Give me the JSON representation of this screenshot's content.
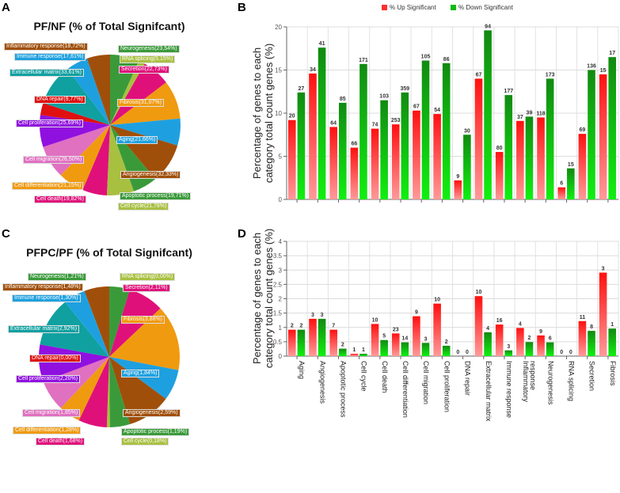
{
  "panels": {
    "a": "A",
    "b": "B",
    "c": "C",
    "d": "D"
  },
  "colors": {
    "up": "#ff1a1a",
    "down": "#119911"
  },
  "chart_data": [
    {
      "type": "pie",
      "title": "PF/NF (% of Total Signifcant)",
      "slices": [
        {
          "name": "Neurogenesis",
          "value": 23.54,
          "label": "Neurogenesis(23,54%)",
          "color": "#3a9a3a"
        },
        {
          "name": "RNA splicing",
          "value": 5.15,
          "label": "RNA splicing(5,15%)",
          "color": "#a8c040"
        },
        {
          "name": "Secretion",
          "value": 22.73,
          "label": "Secretion(22,73%)",
          "color": "#e0107a"
        },
        {
          "name": "Fibrosis",
          "value": 31.07,
          "label": "Fibrosis(31,07%)",
          "color": "#f09a10"
        },
        {
          "name": "Aging",
          "value": 21.66,
          "label": "Aging(21,66%)",
          "color": "#1ea0e0"
        },
        {
          "name": "Angiogenesis",
          "value": 32.33,
          "label": "Angiogenesis(32,33%)",
          "color": "#a04f0a"
        },
        {
          "name": "Apoptotic process",
          "value": 19.71,
          "label": "Apoptotic process(19,71%)",
          "color": "#3a9a3a"
        },
        {
          "name": "Cell cycle",
          "value": 21.78,
          "label": "Cell cycle(21,78%)",
          "color": "#a8c040"
        },
        {
          "name": "Cell death",
          "value": 19.82,
          "label": "Cell death(19,82%)",
          "color": "#e0107a"
        },
        {
          "name": "Cell differentiation",
          "value": 21.15,
          "label": "Cell differentiation(21,15%)",
          "color": "#f09a10"
        },
        {
          "name": "Cell migration",
          "value": 26.5,
          "label": "Cell migration(26,50%)",
          "color": "#e070c0"
        },
        {
          "name": "Cell proliferation",
          "value": 25.69,
          "label": "Cell proliferation(25,69%)",
          "color": "#9010e0"
        },
        {
          "name": "DNA repair",
          "value": 9.77,
          "label": "DNA repair(9,77%)",
          "color": "#e01010"
        },
        {
          "name": "Extracellular matrix",
          "value": 33.61,
          "label": "Extracellular matrix(33,61%)",
          "color": "#10a0a0"
        },
        {
          "name": "Immune response",
          "value": 17.61,
          "label": "Immune response(17,61%)",
          "color": "#1ea0e0"
        },
        {
          "name": "Inflammatory response",
          "value": 18.72,
          "label": "Inflammatory response(18,72%)",
          "color": "#a04f0a"
        }
      ]
    },
    {
      "type": "bar",
      "title": "",
      "legend": [
        "% Up Significant",
        "% Down Significant"
      ],
      "legend_position": "top",
      "ylabel": [
        "Percentage of genes to each",
        "category total count genes (%)"
      ],
      "ylim": [
        0,
        20
      ],
      "yticks": [
        "0",
        "5",
        "10",
        "15",
        "20"
      ],
      "grid": true,
      "categories": [
        "Aging",
        "Angiogenesis",
        "Apoptotic process",
        "Cell cycle",
        "Cell death",
        "Cell differentiation",
        "Cell migration",
        "Cell proliferation",
        "DNA repair",
        "Extracellular matrix",
        "Immune response",
        "Inflammatory response",
        "Neurogenesis",
        "RNA splicing",
        "Secretion",
        "Fibrosis"
      ],
      "series": [
        {
          "name": "% Up Significant",
          "values": [
            9.2,
            14.6,
            8.4,
            6.0,
            8.2,
            8.7,
            10.3,
            9.9,
            2.2,
            14.0,
            5.5,
            9.1,
            9.5,
            1.4,
            7.6,
            14.5
          ],
          "labels": [
            "20",
            "34",
            "64",
            "66",
            "74",
            "253",
            "67",
            "54",
            "9",
            "67",
            "80",
            "37",
            "118",
            "6",
            "69",
            "15"
          ]
        },
        {
          "name": "% Down Significant",
          "values": [
            12.4,
            17.6,
            11.2,
            15.7,
            11.5,
            12.4,
            16.1,
            15.8,
            7.5,
            19.6,
            12.1,
            9.6,
            14.0,
            3.6,
            15.0,
            16.5
          ],
          "labels": [
            "27",
            "41",
            "85",
            "171",
            "103",
            "359",
            "105",
            "86",
            "30",
            "94",
            "177",
            "39",
            "173",
            "15",
            "136",
            "17"
          ]
        }
      ]
    },
    {
      "type": "pie",
      "title": "PFPC/PF (% of Total Signifcant)",
      "slices": [
        {
          "name": "Neurogenesis",
          "value": 1.21,
          "label": "Neurogenesis(1,21%)",
          "color": "#3a9a3a"
        },
        {
          "name": "RNA splicing",
          "value": 0.0,
          "label": "RNA splicing(0,00%)",
          "color": "#a8c040"
        },
        {
          "name": "Secretion",
          "value": 2.11,
          "label": "Secretion(2,11%)",
          "color": "#e0107a"
        },
        {
          "name": "Fibrosis",
          "value": 3.88,
          "label": "Fibrosis(3,88%)",
          "color": "#f09a10"
        },
        {
          "name": "Aging",
          "value": 1.84,
          "label": "Aging(1,84%)",
          "color": "#1ea0e0"
        },
        {
          "name": "Angiogenesis",
          "value": 2.59,
          "label": "Angiogenesis(2,59%)",
          "color": "#a04f0a"
        },
        {
          "name": "Apoptotic process",
          "value": 1.19,
          "label": "Apoptotic process(1,19%)",
          "color": "#3a9a3a"
        },
        {
          "name": "Cell cycle",
          "value": 0.18,
          "label": "Cell cycle(0,18%)",
          "color": "#a8c040"
        },
        {
          "name": "Cell death",
          "value": 1.68,
          "label": "Cell death(1,68%)",
          "color": "#e0107a"
        },
        {
          "name": "Cell differentiation",
          "value": 1.28,
          "label": "Cell differentiation(1,28%)",
          "color": "#f09a10"
        },
        {
          "name": "Cell migration",
          "value": 1.85,
          "label": "Cell migration(1,85%)",
          "color": "#e070c0"
        },
        {
          "name": "Cell proliferation",
          "value": 2.2,
          "label": "Cell proliferation(2,20%)",
          "color": "#9010e0"
        },
        {
          "name": "DNA repair",
          "value": 0.0,
          "label": "DNA repair(0,00%)",
          "color": "#e01010"
        },
        {
          "name": "Extracellular matrix",
          "value": 2.92,
          "label": "Extracellular matrix(2,92%)",
          "color": "#10a0a0"
        },
        {
          "name": "Immune response",
          "value": 1.3,
          "label": "Immune response(1,30%)",
          "color": "#1ea0e0"
        },
        {
          "name": "Inflammatory response",
          "value": 1.48,
          "label": "Inflammatory response(1,48%)",
          "color": "#a04f0a"
        }
      ]
    },
    {
      "type": "bar",
      "title": "",
      "ylabel": [
        "Percentage of genes to each",
        "category total count genes (%)"
      ],
      "ylim": [
        0,
        4
      ],
      "yticks": [
        "0",
        "0.5",
        "1",
        "1.5",
        "2",
        "2.5",
        "3",
        "3.5",
        "4"
      ],
      "grid": true,
      "categories": [
        "Aging",
        "Angiogenesis",
        "Apoptotic process",
        "Cell cycle",
        "Cell death",
        "Cell differentiation",
        "Cell migration",
        "Cell proliferation",
        "DNA repair",
        "Extracellular matrix",
        "Immune response",
        "Inflammatory response",
        "Neurogenesis",
        "RNA splicing",
        "Secretion",
        "Fibrosis"
      ],
      "series": [
        {
          "name": "% Up Significant",
          "values": [
            0.92,
            1.3,
            0.92,
            0.08,
            1.12,
            0.79,
            1.39,
            1.83,
            0,
            2.09,
            1.1,
            0.98,
            0.72,
            0,
            1.22,
            2.91
          ],
          "labels": [
            "2",
            "3",
            "7",
            "1",
            "10",
            "23",
            "9",
            "10",
            "0",
            "10",
            "16",
            "4",
            "9",
            "0",
            "11",
            "3"
          ]
        },
        {
          "name": "% Down Significant",
          "values": [
            0.92,
            1.3,
            0.26,
            0.08,
            0.56,
            0.48,
            0.46,
            0.36,
            0,
            0.83,
            0.2,
            0.49,
            0.48,
            0,
            0.88,
            0.96
          ],
          "labels": [
            "2",
            "3",
            "2",
            "1",
            "5",
            "14",
            "3",
            "2",
            "0",
            "4",
            "3",
            "2",
            "6",
            "0",
            "8",
            "1"
          ]
        }
      ]
    }
  ]
}
